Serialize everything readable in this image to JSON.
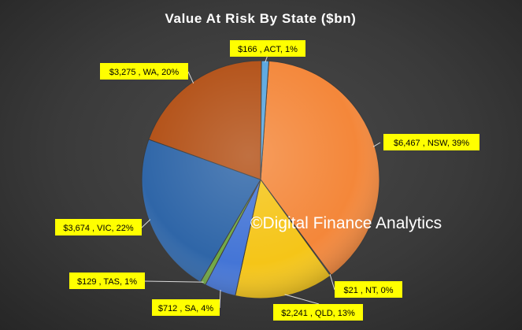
{
  "chart_data": {
    "type": "pie",
    "title": "Value At Risk By State ($bn)",
    "slices": [
      {
        "label": "$6,467 , NSW, 39%",
        "state": "NSW",
        "value": 6467,
        "percent": 39,
        "color": "#f4873a"
      },
      {
        "label": "$21 , NT, 0%",
        "state": "NT",
        "value": 21,
        "percent": 0,
        "color": "#c8c8c8"
      },
      {
        "label": "$2,241 , QLD, 13%",
        "state": "QLD",
        "value": 2241,
        "percent": 13,
        "color": "#f5c518"
      },
      {
        "label": "$712 , SA, 4%",
        "state": "SA",
        "value": 712,
        "percent": 4,
        "color": "#4475d6"
      },
      {
        "label": "$129 , TAS, 1%",
        "state": "TAS",
        "value": 129,
        "percent": 1,
        "color": "#6fa843"
      },
      {
        "label": "$3,674 , VIC, 22%",
        "state": "VIC",
        "value": 3674,
        "percent": 22,
        "color": "#2f66a8"
      },
      {
        "label": "$3,275 , WA, 20%",
        "state": "WA",
        "value": 3275,
        "percent": 20,
        "color": "#b35117"
      },
      {
        "label": "$166 , ACT, 1%",
        "state": "ACT",
        "value": 166,
        "percent": 1,
        "color": "#5aa7e0"
      }
    ]
  },
  "watermark": "©Digital Finance Analytics"
}
